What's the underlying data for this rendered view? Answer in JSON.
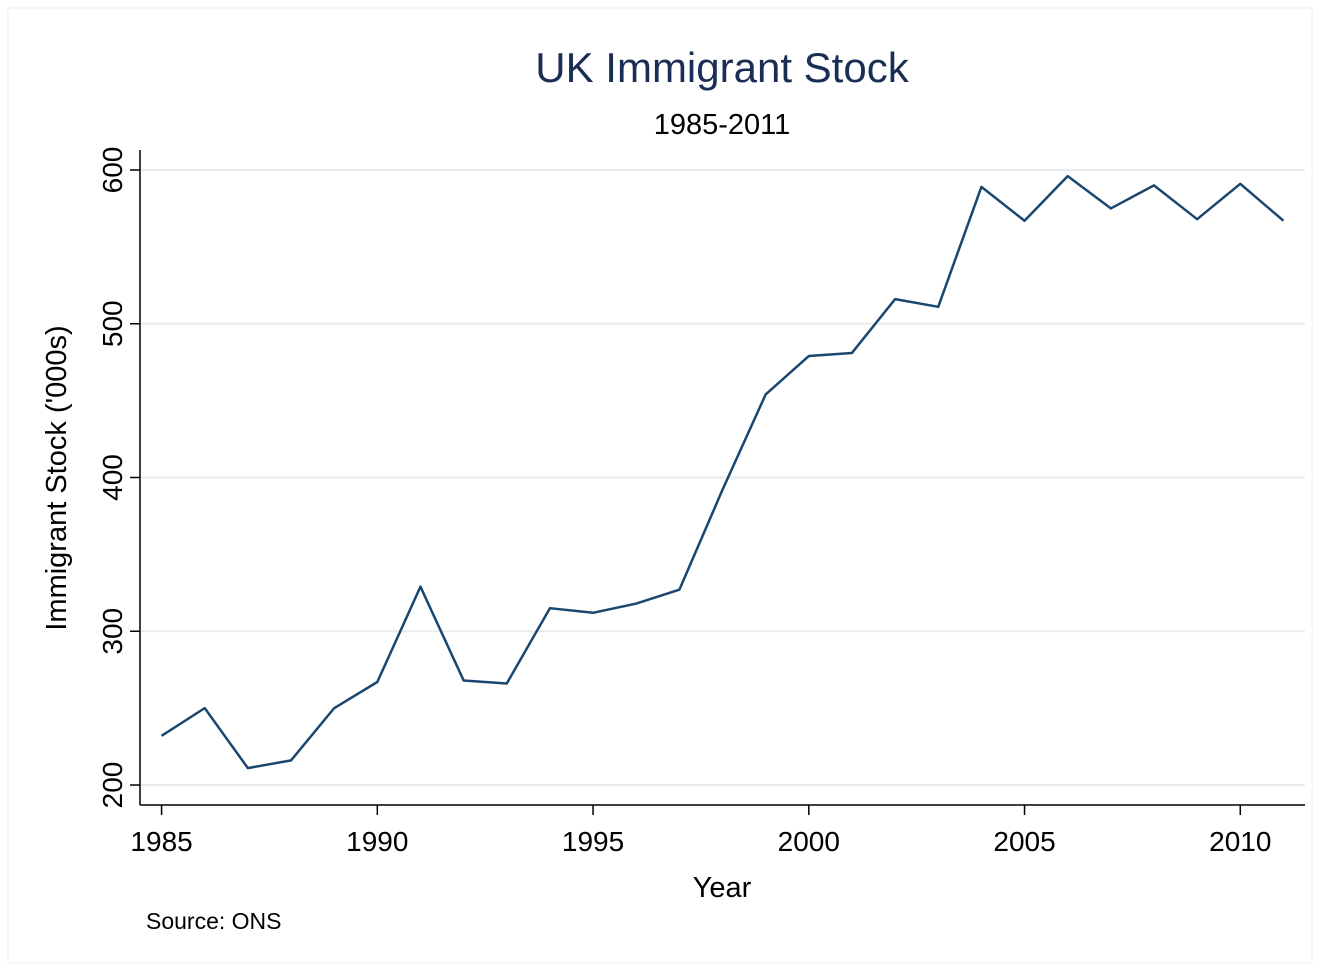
{
  "chart_data": {
    "type": "line",
    "title": "UK Immigrant Stock",
    "subtitle": "1985-2011",
    "x_label": "Year",
    "y_label": "Immigrant Stock ('000s)",
    "note": "Source: ONS",
    "x": [
      1985,
      1986,
      1987,
      1988,
      1989,
      1990,
      1991,
      1992,
      1993,
      1994,
      1995,
      1996,
      1997,
      1998,
      1999,
      2000,
      2001,
      2002,
      2003,
      2004,
      2005,
      2006,
      2007,
      2008,
      2009,
      2010,
      2011
    ],
    "values": [
      232,
      250,
      211,
      216,
      250,
      267,
      329,
      268,
      266,
      315,
      312,
      318,
      327,
      392,
      454,
      479,
      481,
      516,
      511,
      589,
      567,
      596,
      575,
      590,
      568,
      591,
      567
    ],
    "color": "#1a476f",
    "xlim": [
      1984.5,
      2011.5
    ],
    "ylim": [
      187,
      613
    ],
    "xticks": [
      1985,
      1990,
      1995,
      2000,
      2005,
      2010
    ],
    "yticks": [
      200,
      300,
      400,
      500,
      600
    ],
    "grid": true
  }
}
